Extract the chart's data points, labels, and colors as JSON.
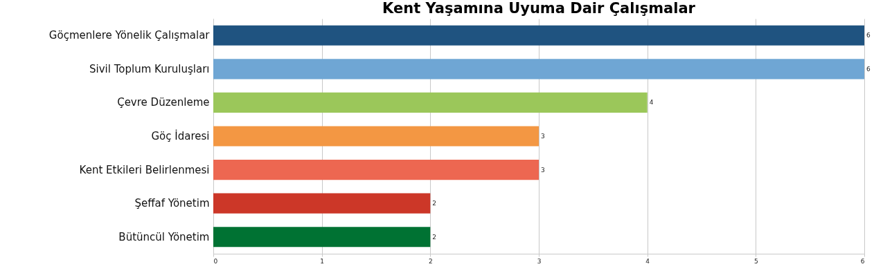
{
  "chart_data": {
    "type": "bar",
    "orientation": "horizontal",
    "title": "Kent Yaşamına Uyuma Dair Çalışmalar",
    "categories": [
      "Göçmenlere Yönelik Çalışmalar",
      "Sivil Toplum Kuruluşları",
      "Çevre Düzenleme",
      "Göç İdaresi",
      "Kent Etkileri Belirlenmesi",
      "Şeffaf Yönetim",
      "Bütüncül Yönetim"
    ],
    "values": [
      6,
      6,
      4,
      3,
      3,
      2,
      2
    ],
    "colors": [
      "#1f5380",
      "#6fa6d4",
      "#9bc75a",
      "#f39743",
      "#ed6751",
      "#cc3728",
      "#007233"
    ],
    "xlim": [
      0,
      6
    ],
    "xticks": [
      0,
      1,
      2,
      3,
      4,
      5,
      6
    ],
    "grid": "x",
    "data_labels": true
  }
}
